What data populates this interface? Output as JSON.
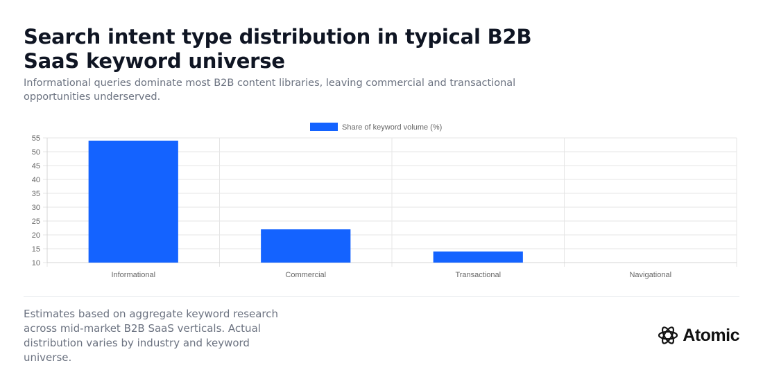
{
  "header": {
    "title": "Search intent type distribution in typical B2B SaaS keyword universe",
    "subtitle": "Informational queries dominate most B2B content libraries, leaving commercial and transactional opportunities underserved."
  },
  "chart_data": {
    "type": "bar",
    "categories": [
      "Informational",
      "Commercial",
      "Transactional",
      "Navigational"
    ],
    "series": [
      {
        "name": "Share of keyword volume (%)",
        "values": [
          54,
          22,
          14,
          10
        ],
        "color": "#1463ff"
      }
    ],
    "ylim": [
      10,
      55
    ],
    "yticks": [
      10,
      15,
      20,
      25,
      30,
      35,
      40,
      45,
      50,
      55
    ],
    "grid": true,
    "legend": "top-center"
  },
  "footer": {
    "note": "Estimates based on aggregate keyword research across mid-market B2B SaaS verticals. Actual distribution varies by industry and keyword universe.",
    "brand": "Atomic",
    "brand_icon": "atom-icon"
  }
}
